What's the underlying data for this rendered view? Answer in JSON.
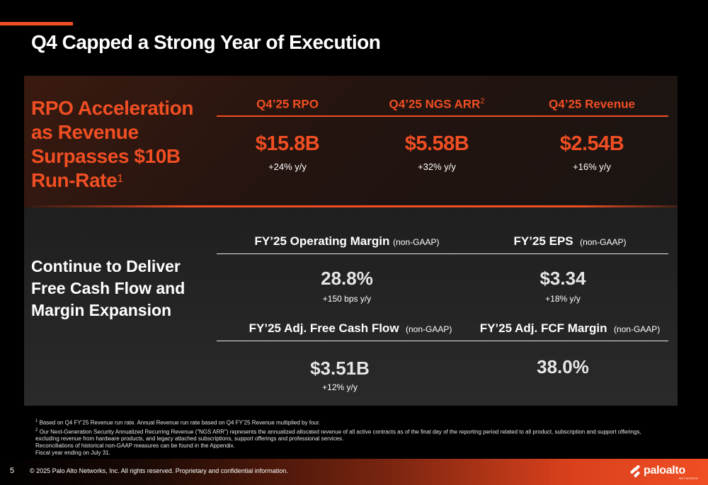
{
  "title": "Q4 Capped a Strong Year of Execution",
  "rpo_section": {
    "heading": "RPO Acceleration as Revenue Surpasses $10B Run-Rate",
    "heading_sup": "1",
    "kpis": [
      {
        "label": "Q4’25 RPO",
        "sup": "",
        "value": "$15.8B",
        "growth": "+24% y/y"
      },
      {
        "label": "Q4’25 NGS ARR",
        "sup": "2",
        "value": "$5.58B",
        "growth": "+32% y/y"
      },
      {
        "label": "Q4’25 Revenue",
        "sup": "",
        "value": "$2.54B",
        "growth": "+16% y/y"
      }
    ]
  },
  "cash_section": {
    "heading": "Continue to Deliver Free Cash Flow and Margin Expansion",
    "metrics": [
      {
        "label": "FY’25 Operating Margin",
        "qualifier": "(non-GAAP)",
        "value": "28.8%",
        "growth": "+150 bps y/y"
      },
      {
        "label": "FY’25 EPS",
        "qualifier": "(non-GAAP)",
        "value": "$3.34",
        "growth": "+18% y/y"
      },
      {
        "label": "FY’25 Adj. Free Cash Flow",
        "qualifier": "(non-GAAP)",
        "value": "$3.51B",
        "growth": "+12% y/y"
      },
      {
        "label": "FY’25 Adj. FCF Margin",
        "qualifier": "(non-GAAP)",
        "value": "38.0%",
        "growth": ""
      }
    ]
  },
  "footnotes": {
    "note1_sup": "1",
    "note1": "Based on Q4 FY’25 Revenue run rate. Annual Revenue run rate based on Q4 FY’25 Revenue multiplied by four.",
    "note2_sup": "2",
    "note2": "Our Next-Generation Security Annualized Recurring Revenue (“NGS ARR”) represents the annualized allocated revenue of all active contracts as of the final day of the reporting period related to all product, subscription and support offerings, excluding revenue from hardware products, and legacy attached subscriptions, support offerings and professional services.",
    "note3": "Reconciliations of historical non-GAAP measures can be found in the Appendix.",
    "note4": "Fiscal year ending on July 31."
  },
  "footer": {
    "page_number": "5",
    "copyright": "© 2025 Palo Alto Networks, Inc. All rights reserved. Proprietary and confidential information.",
    "logo_text": "paloalto",
    "logo_sub": "NETWORKS"
  },
  "colors": {
    "accent": "#f04e23",
    "background": "#000000"
  }
}
